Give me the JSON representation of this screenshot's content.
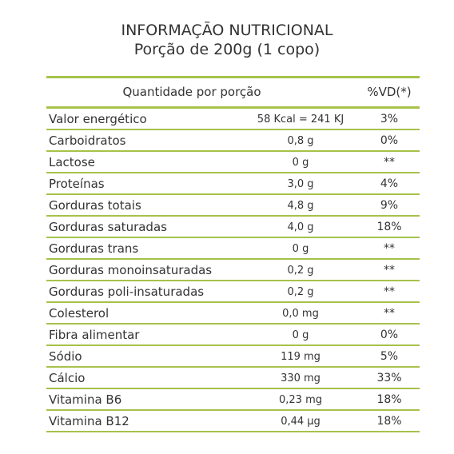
{
  "title": {
    "line1": "INFORMAÇÃO NUTRICIONAL",
    "line2": "Porção de 200g (1 copo)"
  },
  "accent_color": "#a6c24a",
  "table": {
    "header_quantity": "Quantidade por porção",
    "header_vd": "%VD(*)",
    "rows": [
      {
        "name": "Valor energético",
        "quantity": "58 Kcal = 241 KJ",
        "vd": "3%"
      },
      {
        "name": "Carboidratos",
        "quantity": "0,8 g",
        "vd": "0%"
      },
      {
        "name": "Lactose",
        "quantity": "0 g",
        "vd": "**"
      },
      {
        "name": "Proteínas",
        "quantity": "3,0 g",
        "vd": "4%"
      },
      {
        "name": "Gorduras totais",
        "quantity": "4,8 g",
        "vd": "9%"
      },
      {
        "name": "Gorduras saturadas",
        "quantity": "4,0 g",
        "vd": "18%"
      },
      {
        "name": "Gorduras trans",
        "quantity": "0 g",
        "vd": "**"
      },
      {
        "name": "Gorduras monoinsaturadas",
        "quantity": "0,2 g",
        "vd": "**"
      },
      {
        "name": "Gorduras poli-insaturadas",
        "quantity": "0,2 g",
        "vd": "**"
      },
      {
        "name": "Colesterol",
        "quantity": "0,0 mg",
        "vd": "**"
      },
      {
        "name": "Fibra alimentar",
        "quantity": "0 g",
        "vd": "0%"
      },
      {
        "name": "Sódio",
        "quantity": "119 mg",
        "vd": "5%"
      },
      {
        "name": "Cálcio",
        "quantity": "330 mg",
        "vd": "33%"
      },
      {
        "name": "Vitamina B6",
        "quantity": "0,23 mg",
        "vd": "18%"
      },
      {
        "name": "Vitamina B12",
        "quantity": "0,44 µg",
        "vd": "18%"
      }
    ]
  }
}
